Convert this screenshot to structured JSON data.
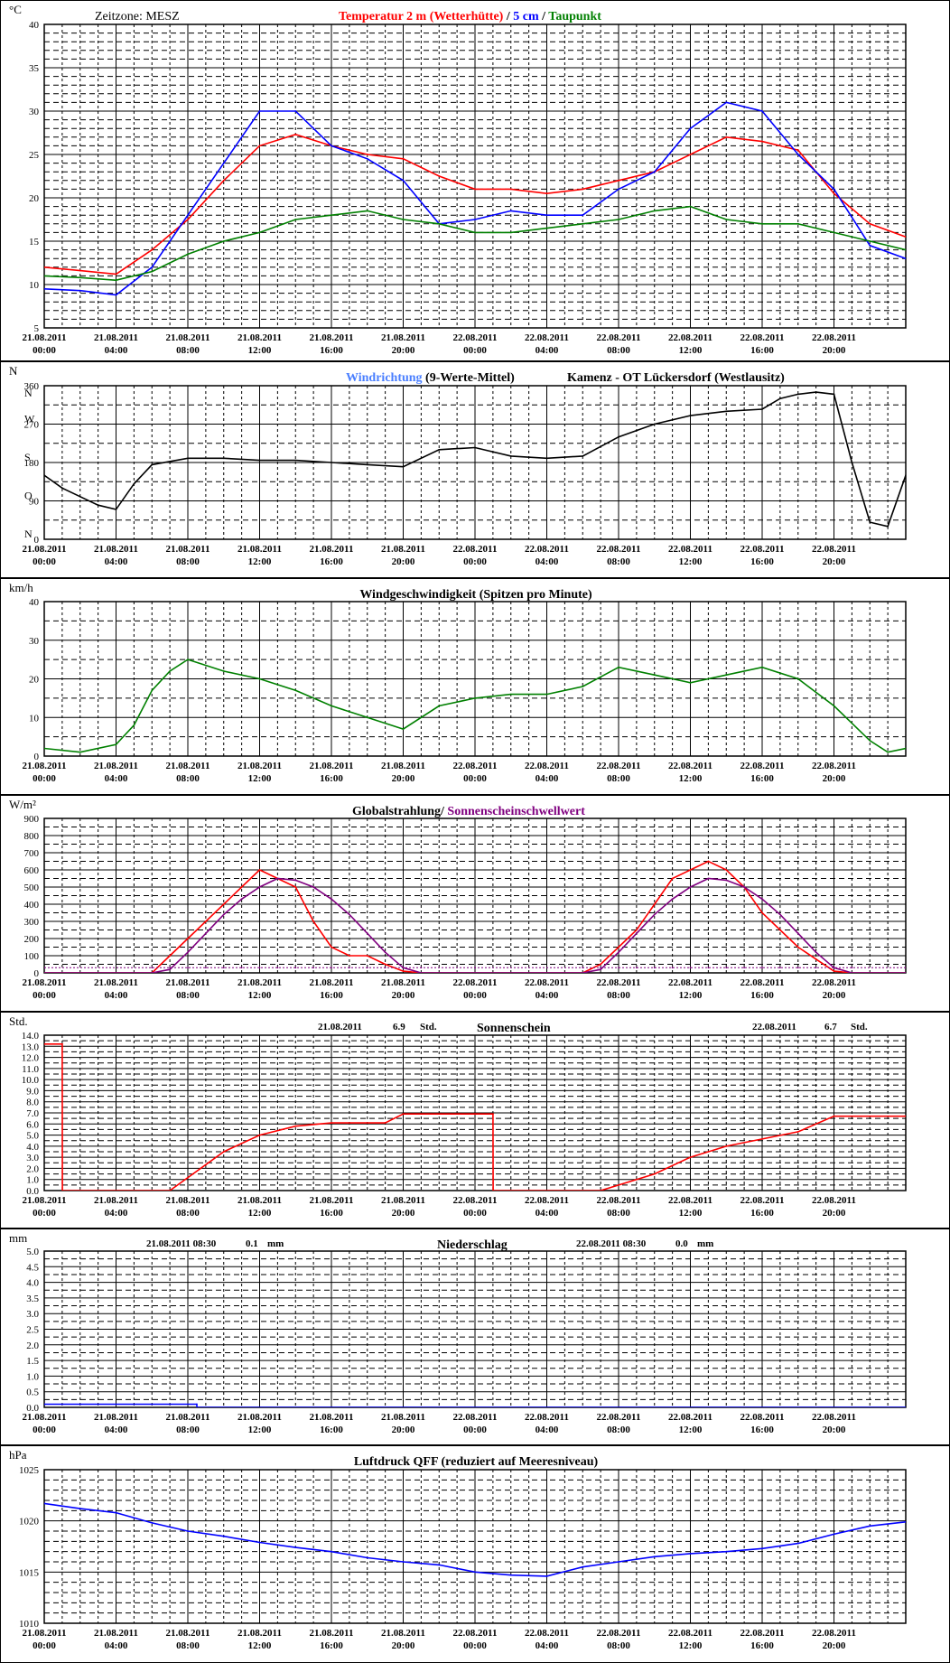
{
  "x_axis": {
    "dates": [
      "21.08.2011",
      "21.08.2011",
      "21.08.2011",
      "21.08.2011",
      "21.08.2011",
      "21.08.2011",
      "22.08.2011",
      "22.08.2011",
      "22.08.2011",
      "22.08.2011",
      "22.08.2011",
      "22.08.2011"
    ],
    "times": [
      "00:00",
      "04:00",
      "08:00",
      "12:00",
      "16:00",
      "20:00",
      "00:00",
      "04:00",
      "08:00",
      "12:00",
      "16:00",
      "20:00"
    ],
    "range_hours": [
      0,
      48
    ]
  },
  "colors": {
    "red": "#ff0000",
    "blue": "#0000ff",
    "green": "#008000",
    "purple": "#800080",
    "light_blue": "#4a7fff",
    "black": "#000000"
  },
  "chart_data": [
    {
      "id": "temperature",
      "type": "line",
      "ylabel": "°C",
      "timezone": "Zeitzone: MESZ",
      "title_parts": [
        {
          "text": "Temperatur 2 m (Wetterhütte)",
          "color": "#ff0000"
        },
        {
          "text": "  /  ",
          "color": "#000000"
        },
        {
          "text": "5 cm",
          "color": "#0000ff"
        },
        {
          "text": " / ",
          "color": "#000000"
        },
        {
          "text": "Taupunkt",
          "color": "#008000"
        }
      ],
      "ylim": [
        5,
        40
      ],
      "yticks": [
        5,
        10,
        15,
        20,
        25,
        30,
        35,
        40
      ],
      "grid": true,
      "x_hours": [
        0,
        2,
        4,
        6,
        8,
        10,
        12,
        14,
        16,
        18,
        20,
        22,
        24,
        26,
        28,
        30,
        32,
        34,
        36,
        38,
        40,
        42,
        44,
        46,
        48
      ],
      "series": [
        {
          "key": "t2m",
          "color": "#ff0000",
          "values": [
            12,
            11.6,
            11.2,
            14,
            17.5,
            22,
            26,
            27.3,
            26,
            25,
            24.5,
            22.5,
            21,
            21,
            20.5,
            21,
            22,
            23,
            25,
            27,
            26.5,
            25.5,
            20.5,
            17,
            15.5
          ]
        },
        {
          "key": "t5cm",
          "color": "#0000ff",
          "values": [
            9.5,
            9.3,
            8.8,
            12,
            18,
            24,
            30,
            30,
            26,
            24.5,
            22,
            17,
            17.5,
            18.5,
            18,
            18,
            21,
            23,
            28,
            31,
            30,
            25,
            21,
            14.5,
            13
          ]
        },
        {
          "key": "dew",
          "color": "#008000",
          "values": [
            11,
            10.8,
            10.5,
            11.5,
            13.5,
            15,
            16,
            17.5,
            18,
            18.5,
            17.5,
            17,
            16,
            16,
            16.5,
            17,
            17.5,
            18.5,
            19,
            17.5,
            17,
            17,
            16,
            15,
            14
          ]
        }
      ]
    },
    {
      "id": "wind_direction",
      "type": "line",
      "ylabel": "N",
      "title_parts": [
        {
          "text": "Windrichtung",
          "color": "#4a7fff"
        },
        {
          "text": " (9-Werte-Mittel)",
          "color": "#000000"
        }
      ],
      "station": "Kamenz - OT Lückersdorf (Westlausitz)",
      "ylim": [
        0,
        360
      ],
      "yticks": [
        0,
        90,
        180,
        270,
        360
      ],
      "ytick_labels": [
        "0",
        "90",
        "180",
        "270",
        "360"
      ],
      "compass_labels": [
        "N",
        "O",
        "S",
        "W",
        "N"
      ],
      "grid": true,
      "x_hours": [
        0,
        1,
        2,
        3,
        4,
        5,
        6,
        8,
        10,
        12,
        14,
        16,
        18,
        20,
        22,
        24,
        26,
        28,
        30,
        32,
        34,
        36,
        38,
        40,
        41,
        42,
        43,
        44,
        45,
        46,
        47,
        48
      ],
      "series": [
        {
          "key": "mean9",
          "color": "#000000",
          "values": [
            150,
            120,
            100,
            80,
            70,
            130,
            175,
            190,
            190,
            185,
            185,
            180,
            175,
            170,
            210,
            215,
            195,
            190,
            195,
            240,
            270,
            290,
            300,
            305,
            330,
            340,
            345,
            340,
            180,
            40,
            30,
            150
          ]
        }
      ]
    },
    {
      "id": "wind_speed",
      "type": "line",
      "ylabel": "km/h",
      "title": "Windgeschwindigkeit (Spitzen pro Minute)",
      "ylim": [
        0,
        40
      ],
      "yticks": [
        0,
        10,
        20,
        30,
        40
      ],
      "grid": true,
      "x_hours": [
        0,
        2,
        4,
        5,
        6,
        7,
        8,
        10,
        12,
        14,
        16,
        18,
        20,
        22,
        24,
        26,
        28,
        30,
        32,
        34,
        36,
        38,
        40,
        42,
        44,
        46,
        47,
        48
      ],
      "series": [
        {
          "key": "gust",
          "color": "#008000",
          "values": [
            2,
            1,
            3,
            8,
            17,
            22,
            25,
            22,
            20,
            17,
            13,
            10,
            7,
            13,
            15,
            16,
            16,
            18,
            23,
            21,
            19,
            21,
            23,
            20,
            13,
            4,
            1,
            2
          ]
        }
      ]
    },
    {
      "id": "global_radiation",
      "type": "line",
      "ylabel": "W/m²",
      "title_parts": [
        {
          "text": "Globalstrahlung/ ",
          "color": "#000000"
        },
        {
          "text": "Sonnenscheinschwellwert",
          "color": "#800080"
        }
      ],
      "ylim": [
        0,
        900
      ],
      "yticks": [
        0,
        100,
        200,
        300,
        400,
        500,
        600,
        700,
        800,
        900
      ],
      "grid": true,
      "x_hours": [
        0,
        6,
        7,
        8,
        9,
        10,
        11,
        12,
        13,
        14,
        15,
        16,
        17,
        18,
        19,
        20,
        21,
        24,
        30,
        31,
        32,
        33,
        34,
        35,
        36,
        37,
        38,
        39,
        40,
        41,
        42,
        43,
        44,
        45,
        48
      ],
      "series": [
        {
          "key": "radiation",
          "color": "#ff0000",
          "values": [
            0,
            0,
            100,
            200,
            300,
            400,
            500,
            600,
            550,
            500,
            300,
            150,
            100,
            100,
            50,
            10,
            0,
            0,
            0,
            50,
            150,
            250,
            400,
            550,
            600,
            650,
            600,
            500,
            350,
            250,
            150,
            80,
            10,
            0,
            0
          ]
        },
        {
          "key": "sun_curve",
          "color": "#800080",
          "values": [
            0,
            0,
            20,
            120,
            230,
            340,
            430,
            500,
            550,
            540,
            500,
            430,
            340,
            230,
            120,
            30,
            0,
            0,
            0,
            20,
            120,
            230,
            340,
            430,
            500,
            550,
            540,
            500,
            430,
            340,
            230,
            120,
            30,
            0,
            0
          ]
        },
        {
          "key": "threshold",
          "color": "#800080",
          "values": [
            30,
            30,
            30,
            30,
            30,
            30,
            30,
            30,
            30,
            30,
            30,
            30,
            30,
            30,
            30,
            30,
            30,
            30,
            30,
            30,
            30,
            30,
            30,
            30,
            30,
            30,
            30,
            30,
            30,
            30,
            30,
            30,
            30,
            30,
            30
          ]
        }
      ]
    },
    {
      "id": "sunshine",
      "type": "line",
      "ylabel": "Std.",
      "title": "Sonnenschein",
      "summary": [
        {
          "date": "21.08.2011",
          "value": "6.9",
          "unit": "Std."
        },
        {
          "date": "22.08.2011",
          "value": "6.7",
          "unit": "Std."
        }
      ],
      "ylim": [
        0,
        14
      ],
      "yticks": [
        0,
        1,
        2,
        3,
        4,
        5,
        6,
        7,
        8,
        9,
        10,
        11,
        12,
        13,
        14
      ],
      "ytick_labels": [
        "0.0",
        "1.0",
        "2.0",
        "3.0",
        "4.0",
        "5.0",
        "6.0",
        "7.0",
        "8.0",
        "9.0",
        "10.0",
        "11.0",
        "12.0",
        "13.0",
        "14.0"
      ],
      "grid": true,
      "x_hours": [
        0,
        1,
        1.01,
        7,
        10,
        12,
        14,
        16,
        19,
        20,
        24,
        25,
        25.01,
        31,
        34,
        36,
        38,
        42,
        44,
        48
      ],
      "series": [
        {
          "key": "sun",
          "color": "#ff0000",
          "values": [
            13.2,
            13.2,
            0,
            0,
            3.5,
            5,
            5.8,
            6.1,
            6.1,
            6.9,
            6.9,
            6.9,
            0,
            0,
            1.5,
            3,
            4,
            5.3,
            6.7,
            6.7
          ]
        }
      ]
    },
    {
      "id": "precipitation",
      "type": "line",
      "ylabel": "mm",
      "title": "Niederschlag",
      "summary": [
        {
          "date": "21.08.2011 08:30",
          "value": "0.1",
          "unit": "mm"
        },
        {
          "date": "22.08.2011 08:30",
          "value": "0.0",
          "unit": "mm"
        }
      ],
      "ylim": [
        0,
        5
      ],
      "yticks": [
        0,
        0.5,
        1,
        1.5,
        2,
        2.5,
        3,
        3.5,
        4,
        4.5,
        5
      ],
      "ytick_labels": [
        "0.0",
        "0.5",
        "1.0",
        "1.5",
        "2.0",
        "2.5",
        "3.0",
        "3.5",
        "4.0",
        "4.5",
        "5.0"
      ],
      "grid": true,
      "x_hours": [
        0,
        8.5,
        8.51,
        48
      ],
      "series": [
        {
          "key": "rain",
          "color": "#0000ff",
          "values": [
            0.1,
            0.1,
            0,
            0
          ]
        }
      ]
    },
    {
      "id": "pressure",
      "type": "line",
      "ylabel": "hPa",
      "title": "Luftdruck QFF (reduziert auf Meeresniveau)",
      "ylim": [
        1010,
        1025
      ],
      "yticks": [
        1010,
        1015,
        1020,
        1025
      ],
      "grid": true,
      "x_hours": [
        0,
        2,
        4,
        6,
        8,
        10,
        12,
        14,
        16,
        18,
        20,
        22,
        24,
        26,
        28,
        30,
        32,
        34,
        36,
        38,
        40,
        42,
        44,
        46,
        48
      ],
      "series": [
        {
          "key": "qff",
          "color": "#0000ff",
          "values": [
            1021.7,
            1021.2,
            1020.8,
            1019.8,
            1019,
            1018.5,
            1017.9,
            1017.4,
            1017,
            1016.4,
            1016,
            1015.7,
            1015,
            1014.7,
            1014.6,
            1015.5,
            1016,
            1016.5,
            1016.8,
            1017,
            1017.3,
            1017.8,
            1018.7,
            1019.5,
            1019.9
          ]
        }
      ]
    }
  ]
}
